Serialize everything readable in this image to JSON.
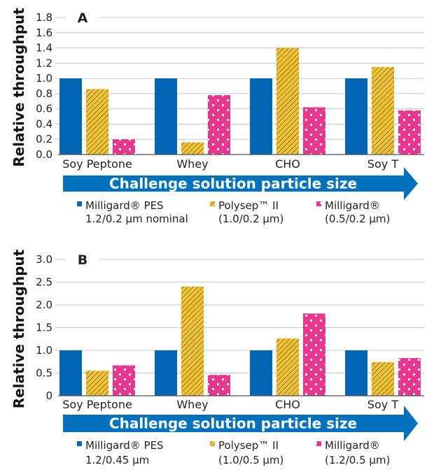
{
  "colors": {
    "series1": "#0066b3",
    "series2": "#f2c230",
    "series3": "#e8378f",
    "arrow": "#0071bc",
    "grid": "#c8c8c8"
  },
  "chart_data": [
    {
      "type": "bar",
      "panel": "A",
      "ylabel": "Relative throughput",
      "arrow_label": "Challenge solution particle size",
      "categories": [
        "Soy Peptone",
        "Whey",
        "CHO",
        "Soy T"
      ],
      "ylim": [
        0,
        1.8
      ],
      "yticks": [
        "0.0",
        "0.2",
        "0.4",
        "0.6",
        "0.8",
        "1.0",
        "1.2",
        "1.4",
        "1.6",
        "1.8"
      ],
      "grid": true,
      "legend_position": "bottom",
      "series": [
        {
          "name": "Milligard® PES 1.2/0.2 µm nominal",
          "legend_line1": "Milligard® PES",
          "legend_line2": "1.2/0.2 µm nominal",
          "fill": "solid",
          "values": [
            1.0,
            1.0,
            1.0,
            1.0
          ]
        },
        {
          "name": "Polysep™ II (1.0/0.2 µm)",
          "legend_line1": "Polysep™ II",
          "legend_line2": "(1.0/0.2 µm)",
          "fill": "hatch",
          "values": [
            0.86,
            0.16,
            1.4,
            1.15
          ]
        },
        {
          "name": "Milligard® (0.5/0.2 µm)",
          "legend_line1": "Milligard®",
          "legend_line2": "(0.5/0.2 µm)",
          "fill": "dots",
          "values": [
            0.2,
            0.78,
            0.62,
            0.58
          ]
        }
      ]
    },
    {
      "type": "bar",
      "panel": "B",
      "ylabel": "Relative throughput",
      "arrow_label": "Challenge solution particle size",
      "categories": [
        "Soy Peptone",
        "Whey",
        "CHO",
        "Soy T"
      ],
      "ylim": [
        0,
        3.0
      ],
      "yticks": [
        "0",
        "0.5",
        "1.0",
        "1.5",
        "2.0",
        "2.5",
        "3.0"
      ],
      "grid": true,
      "legend_position": "bottom",
      "series": [
        {
          "name": "Milligard® PES 1.2/0.45 µm",
          "legend_line1": "Milligard® PES",
          "legend_line2": "1.2/0.45 µm",
          "fill": "solid",
          "values": [
            1.0,
            1.0,
            1.0,
            1.0
          ]
        },
        {
          "name": "Polysep™ II (1.0/0.5 µm)",
          "legend_line1": "Polysep™ II",
          "legend_line2": "(1.0/0.5 µm)",
          "fill": "hatch",
          "values": [
            0.55,
            2.4,
            1.26,
            0.74
          ]
        },
        {
          "name": "Milligard® (1.2/0.5 µm)",
          "legend_line1": "Milligard®",
          "legend_line2": "(1.2/0.5 µm)",
          "fill": "dots",
          "values": [
            0.67,
            0.46,
            1.81,
            0.83
          ]
        }
      ]
    }
  ]
}
